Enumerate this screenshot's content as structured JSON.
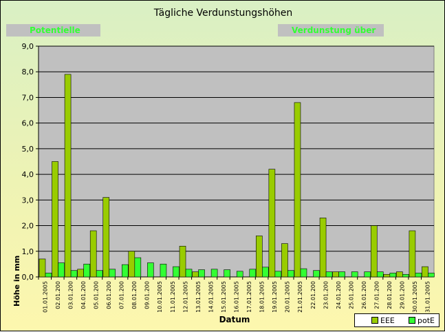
{
  "chart_data": {
    "type": "bar",
    "title": "Tägliche Verdunstungshöhen",
    "banner_left": "Potentielle",
    "banner_right": "Verdunstung über",
    "xlabel": "Datum",
    "ylabel": "Höhe in mm",
    "ylim": [
      0,
      9
    ],
    "yticks": [
      "0,0",
      "1,0",
      "2,0",
      "3,0",
      "4,0",
      "5,0",
      "6,0",
      "7,0",
      "8,0",
      "9,0"
    ],
    "grid": true,
    "legend_position": "bottom-right",
    "categories": [
      "01.01.2005",
      "02.01.200",
      "03.01.200",
      "04.01.200",
      "05.01.200",
      "06.01.200",
      "07.01.200",
      "08.01.200",
      "09.01.200",
      "10.01.2005",
      "11.01.2005",
      "12.01.2005",
      "13.01.2005",
      "14.01.2005",
      "15.01.2005",
      "16.01.2005",
      "17.01.2005",
      "18.01.2005",
      "19.01.2005",
      "20.01.2005",
      "21.01.2005",
      "22.01.200",
      "23.01.200",
      "24.01.200",
      "25.01.200",
      "26.01.200",
      "27.01.200",
      "28.01.200",
      "29.01.200",
      "30.01.2005",
      "31.01.2005"
    ],
    "series": [
      {
        "name": "EEE",
        "color": "#99cc00",
        "values": [
          0.7,
          4.5,
          7.9,
          0.3,
          1.8,
          3.1,
          0.0,
          1.0,
          0.0,
          0.0,
          0.0,
          1.2,
          0.2,
          0.0,
          0.0,
          0.0,
          0.0,
          1.6,
          4.2,
          1.3,
          6.8,
          0.0,
          2.3,
          0.2,
          0.0,
          0.0,
          2.0,
          0.1,
          0.2,
          1.8,
          0.4
        ]
      },
      {
        "name": "potE",
        "color": "#33ff33",
        "values": [
          0.15,
          0.55,
          0.25,
          0.5,
          0.25,
          0.3,
          0.48,
          0.75,
          0.55,
          0.5,
          0.4,
          0.3,
          0.28,
          0.3,
          0.28,
          0.22,
          0.3,
          0.38,
          0.22,
          0.25,
          0.32,
          0.25,
          0.2,
          0.2,
          0.2,
          0.2,
          0.2,
          0.15,
          0.1,
          0.15,
          0.15
        ]
      }
    ]
  }
}
